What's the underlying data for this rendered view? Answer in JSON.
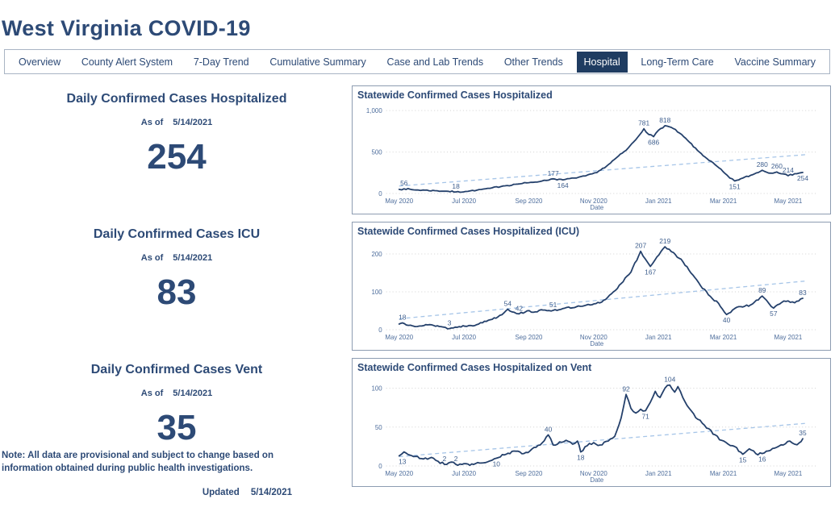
{
  "page": {
    "title": "West Virginia COVID-19"
  },
  "nav": {
    "tabs": [
      {
        "label": "Overview",
        "selected": false
      },
      {
        "label": "County Alert System",
        "selected": false
      },
      {
        "label": "7-Day Trend",
        "selected": false
      },
      {
        "label": "Cumulative Summary",
        "selected": false
      },
      {
        "label": "Case and Lab Trends",
        "selected": false
      },
      {
        "label": "Other Trends",
        "selected": false
      },
      {
        "label": "Hospital",
        "selected": true
      },
      {
        "label": "Long-Term Care",
        "selected": false
      },
      {
        "label": "Vaccine Summary",
        "selected": false
      }
    ]
  },
  "kpis": [
    {
      "title": "Daily Confirmed Cases Hospitalized",
      "as_of_label": "As of",
      "as_of_date": "5/14/2021",
      "value": "254"
    },
    {
      "title": "Daily Confirmed Cases ICU",
      "as_of_label": "As of",
      "as_of_date": "5/14/2021",
      "value": "83"
    },
    {
      "title": "Daily Confirmed Cases Vent",
      "as_of_label": "As of",
      "as_of_date": "5/14/2021",
      "value": "35"
    }
  ],
  "note": "Note: All data are provisional and subject to change based on information obtained during public health investigations.",
  "updated_label": "Updated",
  "updated_date": "5/14/2021",
  "colors": {
    "navy_text": "#2d4a76",
    "selected_tab_bg": "#1f3c61",
    "data_line": "#24406b",
    "trend_line": "#a6c5e8",
    "gridline": "#d2d2d2",
    "tick_text": "#4d6d9c",
    "label_text": "#3f5f8e",
    "panel_border": "#8d9cb1"
  },
  "chart_data": [
    {
      "type": "line",
      "title": "Statewide Confirmed Cases Hospitalized",
      "xlabel": "Date",
      "x_unit": "months since May 2020",
      "x_domain": [
        -0.4,
        12.9
      ],
      "y_max": 1060,
      "x_ticks": [
        {
          "x": 0,
          "label": "May 2020"
        },
        {
          "x": 2,
          "label": "Jul 2020"
        },
        {
          "x": 4,
          "label": "Sep 2020"
        },
        {
          "x": 6,
          "label": "Nov 2020"
        },
        {
          "x": 8,
          "label": "Jan 2021"
        },
        {
          "x": 10,
          "label": "Mar 2021"
        },
        {
          "x": 12,
          "label": "May 2021"
        }
      ],
      "y_ticks": [
        {
          "v": 0,
          "label": "0"
        },
        {
          "v": 500,
          "label": "500"
        },
        {
          "v": 1000,
          "label": "1,000"
        }
      ],
      "trend": {
        "x1": 0,
        "v1": 90,
        "x2": 12.6,
        "v2": 470
      },
      "noise": 9,
      "seed": 7,
      "points": [
        [
          0,
          50
        ],
        [
          0.15,
          56
        ],
        [
          0.45,
          44
        ],
        [
          0.8,
          40
        ],
        [
          1.1,
          34
        ],
        [
          1.45,
          28
        ],
        [
          1.75,
          18
        ],
        [
          2.05,
          24
        ],
        [
          2.4,
          40
        ],
        [
          2.8,
          62
        ],
        [
          3.2,
          90
        ],
        [
          3.6,
          112
        ],
        [
          4.0,
          130
        ],
        [
          4.4,
          150
        ],
        [
          4.75,
          177
        ],
        [
          5.05,
          164
        ],
        [
          5.4,
          186
        ],
        [
          5.75,
          212
        ],
        [
          6.1,
          252
        ],
        [
          6.4,
          330
        ],
        [
          6.7,
          430
        ],
        [
          7.0,
          520
        ],
        [
          7.3,
          650
        ],
        [
          7.55,
          781
        ],
        [
          7.7,
          712
        ],
        [
          7.85,
          686
        ],
        [
          8.0,
          762
        ],
        [
          8.2,
          818
        ],
        [
          8.4,
          796
        ],
        [
          8.65,
          728
        ],
        [
          8.9,
          640
        ],
        [
          9.2,
          520
        ],
        [
          9.5,
          420
        ],
        [
          9.8,
          330
        ],
        [
          10.05,
          242
        ],
        [
          10.2,
          186
        ],
        [
          10.35,
          151
        ],
        [
          10.6,
          186
        ],
        [
          10.9,
          226
        ],
        [
          11.2,
          280
        ],
        [
          11.4,
          246
        ],
        [
          11.65,
          260
        ],
        [
          11.85,
          236
        ],
        [
          12.0,
          214
        ],
        [
          12.2,
          238
        ],
        [
          12.45,
          254
        ]
      ],
      "labels": [
        {
          "x": 0.15,
          "v": 56,
          "text": "56",
          "pos": "above"
        },
        {
          "x": 1.75,
          "v": 18,
          "text": "18",
          "pos": "above"
        },
        {
          "x": 4.75,
          "v": 177,
          "text": "177",
          "pos": "above"
        },
        {
          "x": 5.05,
          "v": 164,
          "text": "164",
          "pos": "below"
        },
        {
          "x": 7.55,
          "v": 781,
          "text": "781",
          "pos": "above"
        },
        {
          "x": 7.85,
          "v": 686,
          "text": "686",
          "pos": "below"
        },
        {
          "x": 8.2,
          "v": 818,
          "text": "818",
          "pos": "above"
        },
        {
          "x": 10.35,
          "v": 151,
          "text": "151",
          "pos": "below"
        },
        {
          "x": 11.2,
          "v": 280,
          "text": "280",
          "pos": "above"
        },
        {
          "x": 11.65,
          "v": 260,
          "text": "260",
          "pos": "above"
        },
        {
          "x": 12.0,
          "v": 214,
          "text": "214",
          "pos": "above"
        },
        {
          "x": 12.45,
          "v": 254,
          "text": "254",
          "pos": "below"
        }
      ]
    },
    {
      "type": "line",
      "title": "Statewide Confirmed Cases Hospitalized (ICU)",
      "xlabel": "Date",
      "x_unit": "months since May 2020",
      "x_domain": [
        -0.4,
        12.9
      ],
      "y_max": 232,
      "x_ticks": [
        {
          "x": 0,
          "label": "May 2020"
        },
        {
          "x": 2,
          "label": "Jul 2020"
        },
        {
          "x": 4,
          "label": "Sep 2020"
        },
        {
          "x": 6,
          "label": "Nov 2020"
        },
        {
          "x": 8,
          "label": "Jan 2021"
        },
        {
          "x": 10,
          "label": "Mar 2021"
        },
        {
          "x": 12,
          "label": "May 2021"
        }
      ],
      "y_ticks": [
        {
          "v": 0,
          "label": "0"
        },
        {
          "v": 100,
          "label": "100"
        },
        {
          "v": 200,
          "label": "200"
        }
      ],
      "trend": {
        "x1": 0,
        "v1": 29,
        "x2": 12.6,
        "v2": 129
      },
      "noise": 3,
      "seed": 13,
      "points": [
        [
          0,
          15
        ],
        [
          0.1,
          18
        ],
        [
          0.35,
          12
        ],
        [
          0.7,
          10
        ],
        [
          1.0,
          13
        ],
        [
          1.3,
          8
        ],
        [
          1.55,
          3
        ],
        [
          1.85,
          8
        ],
        [
          2.15,
          11
        ],
        [
          2.45,
          15
        ],
        [
          2.75,
          25
        ],
        [
          3.05,
          34
        ],
        [
          3.35,
          54
        ],
        [
          3.55,
          46
        ],
        [
          3.7,
          42
        ],
        [
          3.95,
          50
        ],
        [
          4.2,
          47
        ],
        [
          4.5,
          52
        ],
        [
          4.75,
          51
        ],
        [
          5.05,
          56
        ],
        [
          5.35,
          58
        ],
        [
          5.65,
          62
        ],
        [
          5.95,
          66
        ],
        [
          6.25,
          73
        ],
        [
          6.55,
          95
        ],
        [
          6.85,
          122
        ],
        [
          7.15,
          152
        ],
        [
          7.45,
          207
        ],
        [
          7.6,
          186
        ],
        [
          7.75,
          167
        ],
        [
          7.95,
          192
        ],
        [
          8.2,
          219
        ],
        [
          8.4,
          206
        ],
        [
          8.7,
          186
        ],
        [
          9.0,
          150
        ],
        [
          9.3,
          116
        ],
        [
          9.6,
          88
        ],
        [
          9.85,
          70
        ],
        [
          10.1,
          40
        ],
        [
          10.35,
          56
        ],
        [
          10.6,
          60
        ],
        [
          10.9,
          68
        ],
        [
          11.2,
          89
        ],
        [
          11.4,
          70
        ],
        [
          11.55,
          57
        ],
        [
          11.8,
          72
        ],
        [
          12.0,
          76
        ],
        [
          12.2,
          71
        ],
        [
          12.45,
          83
        ]
      ],
      "labels": [
        {
          "x": 0.1,
          "v": 18,
          "text": "18",
          "pos": "above"
        },
        {
          "x": 1.55,
          "v": 3,
          "text": "3",
          "pos": "above"
        },
        {
          "x": 3.35,
          "v": 54,
          "text": "54",
          "pos": "above"
        },
        {
          "x": 3.7,
          "v": 42,
          "text": "42",
          "pos": "above"
        },
        {
          "x": 4.75,
          "v": 51,
          "text": "51",
          "pos": "above"
        },
        {
          "x": 7.45,
          "v": 207,
          "text": "207",
          "pos": "above"
        },
        {
          "x": 7.75,
          "v": 167,
          "text": "167",
          "pos": "below"
        },
        {
          "x": 8.2,
          "v": 219,
          "text": "219",
          "pos": "above"
        },
        {
          "x": 10.1,
          "v": 40,
          "text": "40",
          "pos": "below"
        },
        {
          "x": 11.2,
          "v": 89,
          "text": "89",
          "pos": "above"
        },
        {
          "x": 11.55,
          "v": 57,
          "text": "57",
          "pos": "below"
        },
        {
          "x": 12.45,
          "v": 83,
          "text": "83",
          "pos": "above"
        }
      ]
    },
    {
      "type": "line",
      "title": "Statewide Confirmed Cases Hospitalized on Vent",
      "xlabel": "Date",
      "x_unit": "months since May 2020",
      "x_domain": [
        -0.4,
        12.9
      ],
      "y_max": 113,
      "x_ticks": [
        {
          "x": 0,
          "label": "May 2020"
        },
        {
          "x": 2,
          "label": "Jul 2020"
        },
        {
          "x": 4,
          "label": "Sep 2020"
        },
        {
          "x": 6,
          "label": "Nov 2020"
        },
        {
          "x": 8,
          "label": "Jan 2021"
        },
        {
          "x": 10,
          "label": "Mar 2021"
        },
        {
          "x": 12,
          "label": "May 2021"
        }
      ],
      "y_ticks": [
        {
          "v": 0,
          "label": "0"
        },
        {
          "v": 50,
          "label": "50"
        },
        {
          "v": 100,
          "label": "100"
        }
      ],
      "trend": {
        "x1": 0,
        "v1": 12,
        "x2": 12.6,
        "v2": 55
      },
      "noise": 2,
      "seed": 21,
      "points": [
        [
          0,
          13
        ],
        [
          0.15,
          18
        ],
        [
          0.45,
          12
        ],
        [
          0.75,
          9
        ],
        [
          1.0,
          11
        ],
        [
          1.2,
          6
        ],
        [
          1.4,
          2
        ],
        [
          1.6,
          5
        ],
        [
          1.75,
          2
        ],
        [
          2.0,
          3
        ],
        [
          2.3,
          2
        ],
        [
          2.6,
          4
        ],
        [
          3.0,
          10
        ],
        [
          3.3,
          15
        ],
        [
          3.6,
          19
        ],
        [
          3.85,
          16
        ],
        [
          4.1,
          22
        ],
        [
          4.35,
          27
        ],
        [
          4.6,
          40
        ],
        [
          4.75,
          27
        ],
        [
          4.95,
          31
        ],
        [
          5.15,
          33
        ],
        [
          5.35,
          28
        ],
        [
          5.5,
          32
        ],
        [
          5.6,
          18
        ],
        [
          5.8,
          26
        ],
        [
          6.0,
          30
        ],
        [
          6.2,
          27
        ],
        [
          6.45,
          32
        ],
        [
          6.65,
          38
        ],
        [
          6.85,
          62
        ],
        [
          7.0,
          92
        ],
        [
          7.15,
          74
        ],
        [
          7.3,
          68
        ],
        [
          7.45,
          73
        ],
        [
          7.6,
          71
        ],
        [
          7.75,
          82
        ],
        [
          7.9,
          96
        ],
        [
          8.05,
          88
        ],
        [
          8.2,
          100
        ],
        [
          8.35,
          104
        ],
        [
          8.5,
          95
        ],
        [
          8.6,
          102
        ],
        [
          8.75,
          88
        ],
        [
          8.95,
          74
        ],
        [
          9.15,
          62
        ],
        [
          9.35,
          55
        ],
        [
          9.55,
          48
        ],
        [
          9.75,
          40
        ],
        [
          9.95,
          33
        ],
        [
          10.15,
          28
        ],
        [
          10.35,
          25
        ],
        [
          10.6,
          15
        ],
        [
          10.8,
          22
        ],
        [
          11.0,
          16
        ],
        [
          11.2,
          16
        ],
        [
          11.45,
          20
        ],
        [
          11.65,
          24
        ],
        [
          11.85,
          27
        ],
        [
          12.05,
          32
        ],
        [
          12.2,
          28
        ],
        [
          12.35,
          30
        ],
        [
          12.45,
          35
        ]
      ],
      "labels": [
        {
          "x": 0.1,
          "v": 13,
          "text": "13",
          "pos": "below"
        },
        {
          "x": 1.4,
          "v": 2,
          "text": "2",
          "pos": "above"
        },
        {
          "x": 1.75,
          "v": 2,
          "text": "2",
          "pos": "above"
        },
        {
          "x": 3.0,
          "v": 10,
          "text": "10",
          "pos": "below"
        },
        {
          "x": 4.6,
          "v": 40,
          "text": "40",
          "pos": "above"
        },
        {
          "x": 5.6,
          "v": 18,
          "text": "18",
          "pos": "below"
        },
        {
          "x": 7.0,
          "v": 92,
          "text": "92",
          "pos": "above"
        },
        {
          "x": 7.6,
          "v": 71,
          "text": "71",
          "pos": "below"
        },
        {
          "x": 8.35,
          "v": 104,
          "text": "104",
          "pos": "above"
        },
        {
          "x": 10.6,
          "v": 15,
          "text": "15",
          "pos": "below"
        },
        {
          "x": 11.2,
          "v": 16,
          "text": "16",
          "pos": "below"
        },
        {
          "x": 12.45,
          "v": 35,
          "text": "35",
          "pos": "above"
        }
      ]
    }
  ]
}
